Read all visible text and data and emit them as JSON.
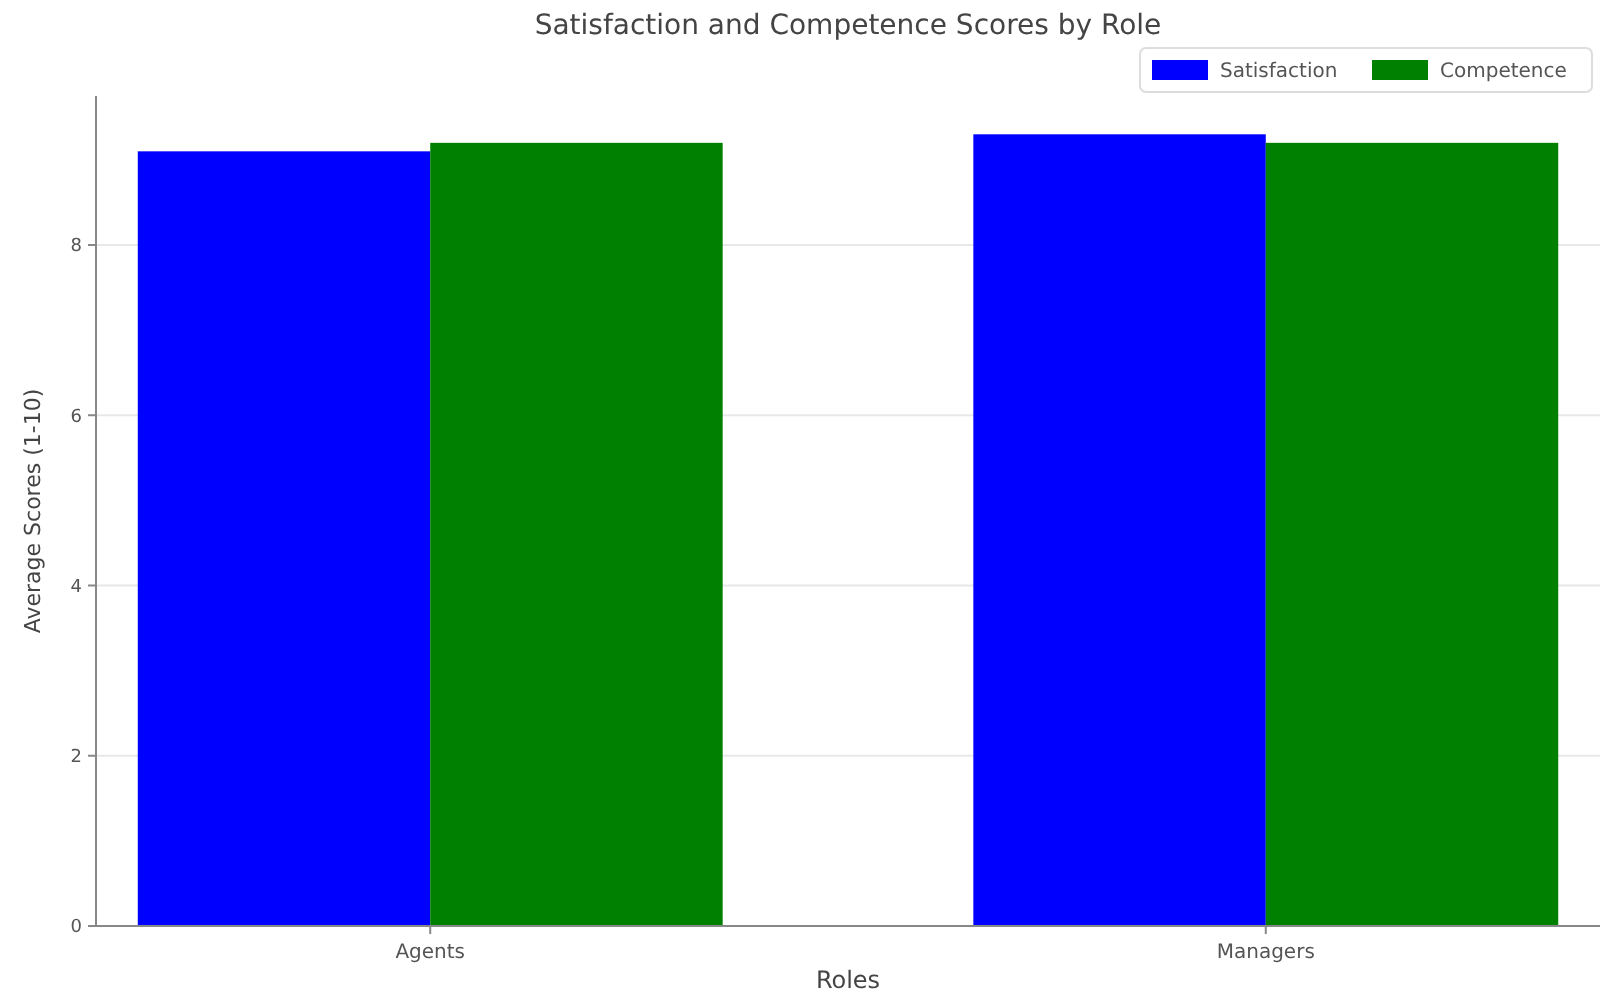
{
  "chart_data": {
    "type": "bar",
    "title": "Satisfaction and Competence Scores by Role",
    "xlabel": "Roles",
    "ylabel": "Average Scores (1-10)",
    "categories": [
      "Agents",
      "Managers"
    ],
    "series": [
      {
        "name": "Satisfaction",
        "color": "#0000ff",
        "values": [
          9.1,
          9.3
        ]
      },
      {
        "name": "Competence",
        "color": "#008000",
        "values": [
          9.2,
          9.2
        ]
      }
    ],
    "ylim": [
      0,
      9.75
    ],
    "yticks": [
      0,
      2,
      4,
      6,
      8
    ],
    "grid": "y",
    "legend": "top right"
  }
}
